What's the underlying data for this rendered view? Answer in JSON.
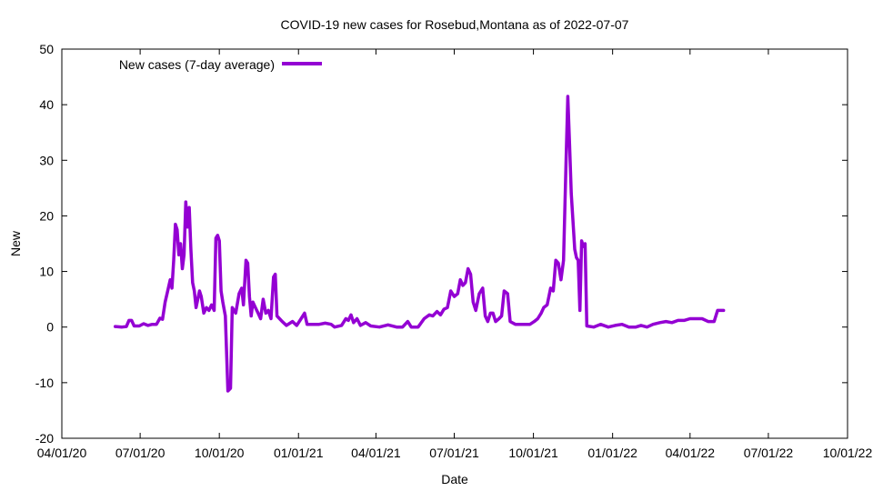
{
  "chart_data": {
    "type": "line",
    "title": "COVID-19 new cases for Rosebud,Montana as of 2022-07-07",
    "xlabel": "Date",
    "ylabel": "New",
    "xlim": [
      "2020-04-01",
      "2022-10-01"
    ],
    "ylim": [
      -20,
      50
    ],
    "x_ticks": [
      "04/01/20",
      "07/01/20",
      "10/01/20",
      "01/01/21",
      "04/01/21",
      "07/01/21",
      "10/01/21",
      "01/01/22",
      "04/01/22",
      "07/01/22",
      "10/01/22"
    ],
    "y_ticks": [
      -20,
      -10,
      0,
      10,
      20,
      30,
      40,
      50
    ],
    "grid": false,
    "legend": "top-left",
    "series": [
      {
        "name": "New cases (7-day average)",
        "color": "#9400d3",
        "points": [
          [
            "2020-06-02",
            0.1
          ],
          [
            "2020-06-10",
            0.0
          ],
          [
            "2020-06-15",
            0.1
          ],
          [
            "2020-06-18",
            1.2
          ],
          [
            "2020-06-21",
            1.2
          ],
          [
            "2020-06-24",
            0.2
          ],
          [
            "2020-06-30",
            0.2
          ],
          [
            "2020-07-05",
            0.6
          ],
          [
            "2020-07-10",
            0.3
          ],
          [
            "2020-07-15",
            0.5
          ],
          [
            "2020-07-20",
            0.5
          ],
          [
            "2020-07-24",
            1.6
          ],
          [
            "2020-07-27",
            1.4
          ],
          [
            "2020-07-30",
            4.5
          ],
          [
            "2020-08-02",
            6.5
          ],
          [
            "2020-08-05",
            8.5
          ],
          [
            "2020-08-07",
            7.0
          ],
          [
            "2020-08-09",
            12.0
          ],
          [
            "2020-08-11",
            18.5
          ],
          [
            "2020-08-13",
            17.5
          ],
          [
            "2020-08-15",
            13.0
          ],
          [
            "2020-08-17",
            15.0
          ],
          [
            "2020-08-19",
            10.5
          ],
          [
            "2020-08-21",
            13.0
          ],
          [
            "2020-08-23",
            22.5
          ],
          [
            "2020-08-25",
            18.0
          ],
          [
            "2020-08-27",
            21.5
          ],
          [
            "2020-08-29",
            14.0
          ],
          [
            "2020-08-31",
            8.0
          ],
          [
            "2020-09-02",
            6.5
          ],
          [
            "2020-09-04",
            3.5
          ],
          [
            "2020-09-06",
            5.0
          ],
          [
            "2020-09-08",
            6.5
          ],
          [
            "2020-09-10",
            5.5
          ],
          [
            "2020-09-13",
            2.5
          ],
          [
            "2020-09-16",
            3.5
          ],
          [
            "2020-09-19",
            3.0
          ],
          [
            "2020-09-22",
            4.0
          ],
          [
            "2020-09-25",
            3.0
          ],
          [
            "2020-09-27",
            16.0
          ],
          [
            "2020-09-29",
            16.5
          ],
          [
            "2020-10-01",
            15.5
          ],
          [
            "2020-10-03",
            6.5
          ],
          [
            "2020-10-05",
            4.5
          ],
          [
            "2020-10-08",
            2.0
          ],
          [
            "2020-10-11",
            -11.5
          ],
          [
            "2020-10-14",
            -11.0
          ],
          [
            "2020-10-16",
            3.5
          ],
          [
            "2020-10-20",
            2.5
          ],
          [
            "2020-10-24",
            6.0
          ],
          [
            "2020-10-27",
            7.0
          ],
          [
            "2020-10-29",
            4.0
          ],
          [
            "2020-11-01",
            12.0
          ],
          [
            "2020-11-03",
            11.5
          ],
          [
            "2020-11-05",
            5.5
          ],
          [
            "2020-11-07",
            2.0
          ],
          [
            "2020-11-09",
            4.5
          ],
          [
            "2020-11-12",
            3.5
          ],
          [
            "2020-11-15",
            2.5
          ],
          [
            "2020-11-18",
            1.5
          ],
          [
            "2020-11-21",
            5.0
          ],
          [
            "2020-11-24",
            2.5
          ],
          [
            "2020-11-27",
            3.0
          ],
          [
            "2020-11-30",
            1.5
          ],
          [
            "2020-12-03",
            9.0
          ],
          [
            "2020-12-05",
            9.5
          ],
          [
            "2020-12-07",
            2.0
          ],
          [
            "2020-12-10",
            1.5
          ],
          [
            "2020-12-13",
            1.0
          ],
          [
            "2020-12-18",
            0.3
          ],
          [
            "2020-12-25",
            1.0
          ],
          [
            "2020-12-30",
            0.3
          ],
          [
            "2021-01-04",
            1.5
          ],
          [
            "2021-01-08",
            2.5
          ],
          [
            "2021-01-11",
            0.5
          ],
          [
            "2021-01-18",
            0.5
          ],
          [
            "2021-01-25",
            0.5
          ],
          [
            "2021-02-01",
            0.7
          ],
          [
            "2021-02-08",
            0.5
          ],
          [
            "2021-02-12",
            0.0
          ],
          [
            "2021-02-20",
            0.3
          ],
          [
            "2021-02-25",
            1.5
          ],
          [
            "2021-02-28",
            1.2
          ],
          [
            "2021-03-03",
            2.2
          ],
          [
            "2021-03-06",
            0.8
          ],
          [
            "2021-03-10",
            1.5
          ],
          [
            "2021-03-14",
            0.3
          ],
          [
            "2021-03-20",
            0.8
          ],
          [
            "2021-03-26",
            0.2
          ],
          [
            "2021-04-05",
            0.0
          ],
          [
            "2021-04-15",
            0.4
          ],
          [
            "2021-04-25",
            0.0
          ],
          [
            "2021-05-02",
            0.0
          ],
          [
            "2021-05-08",
            1.0
          ],
          [
            "2021-05-12",
            0.0
          ],
          [
            "2021-05-20",
            0.0
          ],
          [
            "2021-05-27",
            1.5
          ],
          [
            "2021-06-02",
            2.2
          ],
          [
            "2021-06-06",
            2.0
          ],
          [
            "2021-06-11",
            2.8
          ],
          [
            "2021-06-15",
            2.2
          ],
          [
            "2021-06-19",
            3.2
          ],
          [
            "2021-06-23",
            3.5
          ],
          [
            "2021-06-27",
            6.5
          ],
          [
            "2021-07-01",
            5.5
          ],
          [
            "2021-07-05",
            6.0
          ],
          [
            "2021-07-08",
            8.5
          ],
          [
            "2021-07-11",
            7.5
          ],
          [
            "2021-07-14",
            8.0
          ],
          [
            "2021-07-17",
            10.5
          ],
          [
            "2021-07-20",
            9.5
          ],
          [
            "2021-07-23",
            4.5
          ],
          [
            "2021-07-26",
            3.0
          ],
          [
            "2021-07-30",
            6.0
          ],
          [
            "2021-08-03",
            7.0
          ],
          [
            "2021-08-06",
            2.0
          ],
          [
            "2021-08-09",
            1.0
          ],
          [
            "2021-08-12",
            2.5
          ],
          [
            "2021-08-15",
            2.5
          ],
          [
            "2021-08-18",
            1.0
          ],
          [
            "2021-08-22",
            1.5
          ],
          [
            "2021-08-25",
            2.0
          ],
          [
            "2021-08-28",
            6.5
          ],
          [
            "2021-09-01",
            6.0
          ],
          [
            "2021-09-04",
            1.0
          ],
          [
            "2021-09-10",
            0.5
          ],
          [
            "2021-09-20",
            0.5
          ],
          [
            "2021-09-27",
            0.5
          ],
          [
            "2021-10-02",
            1.0
          ],
          [
            "2021-10-06",
            1.5
          ],
          [
            "2021-10-10",
            2.5
          ],
          [
            "2021-10-13",
            3.5
          ],
          [
            "2021-10-17",
            4.0
          ],
          [
            "2021-10-21",
            7.0
          ],
          [
            "2021-10-24",
            6.5
          ],
          [
            "2021-10-27",
            12.0
          ],
          [
            "2021-10-30",
            11.5
          ],
          [
            "2021-11-02",
            8.5
          ],
          [
            "2021-11-05",
            12.0
          ],
          [
            "2021-11-08",
            30.0
          ],
          [
            "2021-11-10",
            41.5
          ],
          [
            "2021-11-12",
            33.0
          ],
          [
            "2021-11-14",
            24.0
          ],
          [
            "2021-11-16",
            19.0
          ],
          [
            "2021-11-18",
            14.0
          ],
          [
            "2021-11-20",
            12.5
          ],
          [
            "2021-11-22",
            12.0
          ],
          [
            "2021-11-24",
            3.0
          ],
          [
            "2021-11-26",
            15.5
          ],
          [
            "2021-11-28",
            14.5
          ],
          [
            "2021-11-30",
            15.0
          ],
          [
            "2021-12-02",
            0.2
          ],
          [
            "2021-12-10",
            0.0
          ],
          [
            "2021-12-18",
            0.5
          ],
          [
            "2021-12-27",
            0.0
          ],
          [
            "2022-01-04",
            0.3
          ],
          [
            "2022-01-12",
            0.5
          ],
          [
            "2022-01-20",
            0.0
          ],
          [
            "2022-01-28",
            0.0
          ],
          [
            "2022-02-03",
            0.3
          ],
          [
            "2022-02-10",
            0.0
          ],
          [
            "2022-02-17",
            0.5
          ],
          [
            "2022-02-25",
            0.8
          ],
          [
            "2022-03-04",
            1.0
          ],
          [
            "2022-03-11",
            0.8
          ],
          [
            "2022-03-18",
            1.2
          ],
          [
            "2022-03-25",
            1.2
          ],
          [
            "2022-04-01",
            1.5
          ],
          [
            "2022-04-08",
            1.5
          ],
          [
            "2022-04-15",
            1.5
          ],
          [
            "2022-04-22",
            1.0
          ],
          [
            "2022-04-29",
            1.0
          ],
          [
            "2022-05-03",
            3.0
          ],
          [
            "2022-05-10",
            3.0
          ]
        ]
      }
    ]
  }
}
